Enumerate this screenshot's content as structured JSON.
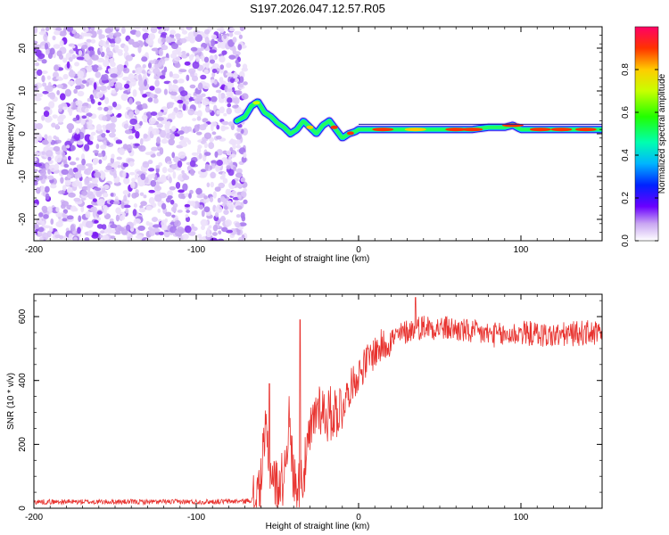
{
  "title": "S197.2026.047.12.57.R05",
  "chart_data": [
    {
      "type": "heatmap",
      "xlabel": "Height of straight line (km)",
      "ylabel": "Frequency (Hz)",
      "xlim": [
        -200,
        150
      ],
      "ylim": [
        -25,
        25
      ],
      "xticks": [
        "-200",
        "-100",
        "0",
        "100"
      ],
      "yticks": [
        "-20",
        "-10",
        "0",
        "10",
        "20"
      ],
      "noise_region_x": [
        -200,
        -73
      ],
      "signal_onset_km": -70,
      "ridge": {
        "x": [
          -75,
          -70,
          -66,
          -62,
          -58,
          -54,
          -50,
          -46,
          -42,
          -38,
          -34,
          -30,
          -26,
          -22,
          -18,
          -14,
          -10,
          -6,
          -2,
          0,
          10,
          20,
          30,
          40,
          50,
          60,
          70,
          80,
          90,
          95,
          100,
          110,
          120,
          130,
          140,
          150
        ],
        "y": [
          3,
          4,
          6.5,
          7.5,
          5,
          4,
          2.5,
          1.5,
          0,
          1,
          3,
          1.5,
          0,
          2,
          3,
          1,
          -1,
          0,
          0.5,
          1,
          1,
          1,
          1,
          1,
          1,
          1,
          1,
          1.5,
          1.5,
          2,
          1,
          1,
          1,
          1,
          1,
          1
        ]
      },
      "colorbar": {
        "label": "Normalized spectral amplitude",
        "range": [
          0,
          1
        ],
        "ticks": [
          "0.0",
          "0.2",
          "0.4",
          "0.6",
          "0.8"
        ]
      }
    },
    {
      "type": "line",
      "xlabel": "Height of straight line (km)",
      "ylabel": "SNR (10 * v/v)",
      "xlim": [
        -200,
        150
      ],
      "ylim": [
        0,
        670
      ],
      "xticks": [
        "-200",
        "-100",
        "0",
        "100"
      ],
      "yticks": [
        "0",
        "200",
        "400",
        "600"
      ],
      "series": [
        {
          "name": "SNR",
          "color": "#e8332f",
          "x": [
            -200,
            -150,
            -100,
            -70,
            -63,
            -60,
            -57,
            -54,
            -50,
            -46,
            -43,
            -40,
            -37,
            -33,
            -30,
            -25,
            -20,
            -15,
            -10,
            -5,
            0,
            5,
            10,
            15,
            20,
            25,
            30,
            40,
            50,
            60,
            70,
            80,
            90,
            100,
            110,
            120,
            130,
            140,
            150
          ],
          "y": [
            20,
            20,
            20,
            22,
            30,
            100,
            240,
            120,
            60,
            100,
            280,
            90,
            60,
            130,
            220,
            330,
            290,
            300,
            320,
            380,
            420,
            460,
            490,
            510,
            530,
            540,
            555,
            570,
            565,
            560,
            550,
            545,
            540,
            550,
            545,
            540,
            545,
            550,
            545
          ]
        }
      ],
      "spikes": [
        {
          "x": -55,
          "y": 390
        },
        {
          "x": -36,
          "y": 590
        },
        {
          "x": 35,
          "y": 660
        }
      ]
    }
  ]
}
